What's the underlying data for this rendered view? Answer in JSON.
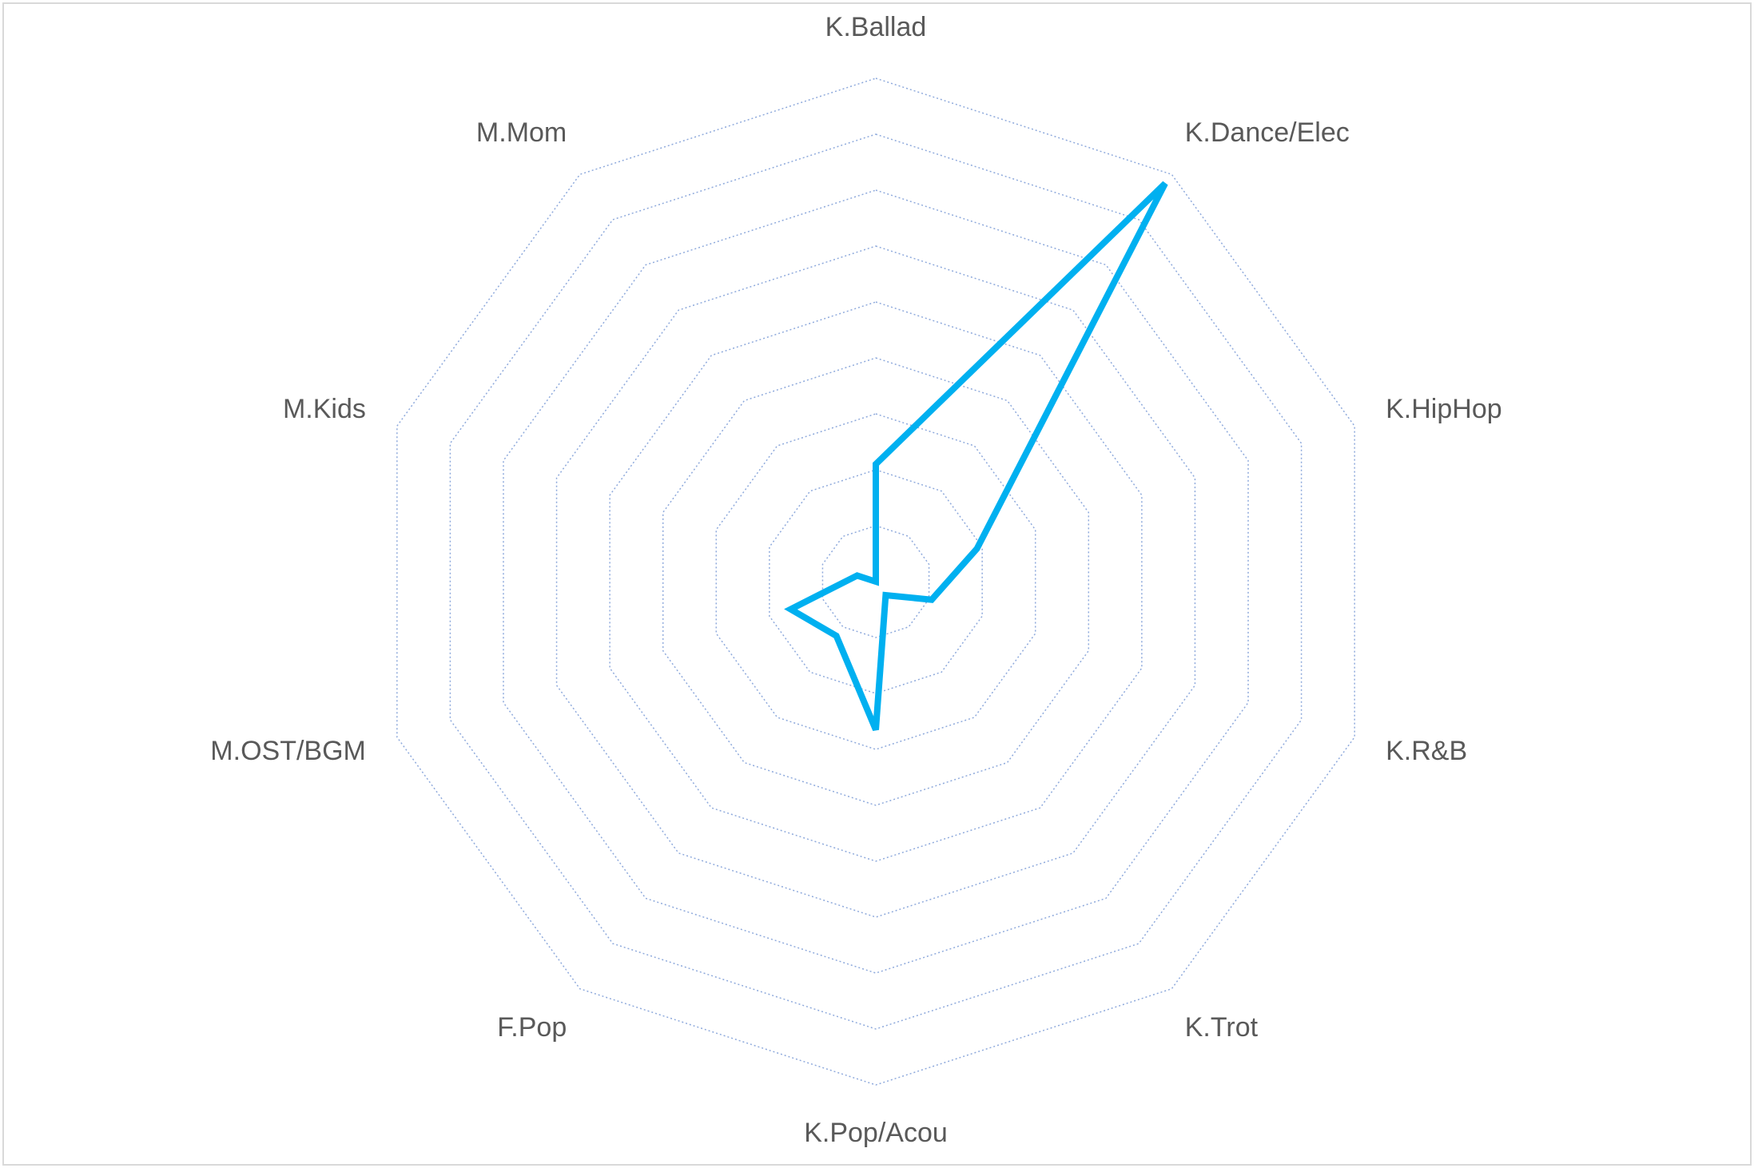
{
  "chart_data": {
    "type": "radar",
    "categories": [
      "K.Ballad",
      "K.Dance/Elec",
      "K.HipHop",
      "K.R&B",
      "K.Trot",
      "K.Pop/Acou",
      "F.Pop",
      "M.OST/BGM",
      "M.Kids",
      "M.Mom"
    ],
    "series": [
      {
        "color": "#00b0f0",
        "values": [
          2.1,
          8.8,
          1.9,
          1.05,
          0.3,
          2.65,
          1.2,
          1.6,
          0.35,
          0
        ]
      }
    ],
    "rlim": [
      0,
      9
    ],
    "rticks": [
      1,
      2,
      3,
      4,
      5,
      6,
      7,
      8,
      9
    ],
    "grid": true
  }
}
